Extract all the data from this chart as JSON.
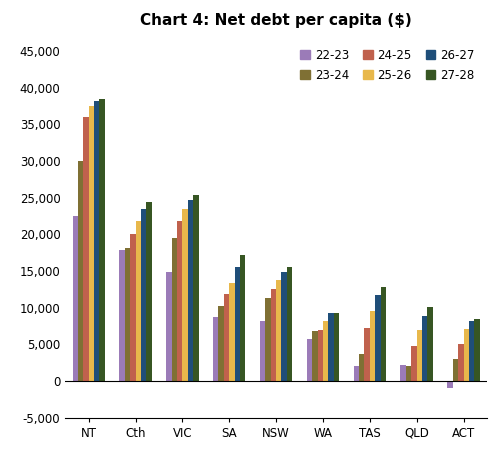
{
  "title": "Chart 4: Net debt per capita ($)",
  "categories": [
    "NT",
    "Cth",
    "VIC",
    "SA",
    "NSW",
    "WA",
    "TAS",
    "QLD",
    "ACT"
  ],
  "series": [
    {
      "label": "22-23",
      "color": "#9b7bb8",
      "values": [
        22500,
        17800,
        14800,
        8700,
        8200,
        5700,
        2000,
        2200,
        -1000
      ]
    },
    {
      "label": "23-24",
      "color": "#7f7034",
      "values": [
        30000,
        18200,
        19500,
        10200,
        11300,
        6800,
        3700,
        2000,
        3000
      ]
    },
    {
      "label": "24-25",
      "color": "#c0614d",
      "values": [
        36000,
        20000,
        21800,
        11800,
        12600,
        7000,
        7200,
        4800,
        5000
      ]
    },
    {
      "label": "25-26",
      "color": "#e8b84b",
      "values": [
        37500,
        21800,
        23500,
        13300,
        13800,
        8200,
        9500,
        7000,
        7100
      ]
    },
    {
      "label": "26-27",
      "color": "#1f4e79",
      "values": [
        38200,
        23500,
        24700,
        15500,
        14900,
        9300,
        11700,
        8800,
        8200
      ]
    },
    {
      "label": "27-28",
      "color": "#375623",
      "values": [
        38500,
        24400,
        25300,
        17200,
        15500,
        9300,
        12800,
        10100,
        8500
      ]
    }
  ],
  "ylim": [
    -5000,
    47000
  ],
  "yticks": [
    -5000,
    0,
    5000,
    10000,
    15000,
    20000,
    25000,
    30000,
    35000,
    40000,
    45000
  ],
  "background_color": "#ffffff",
  "title_fontsize": 11,
  "tick_fontsize": 8.5,
  "legend_fontsize": 8.5
}
